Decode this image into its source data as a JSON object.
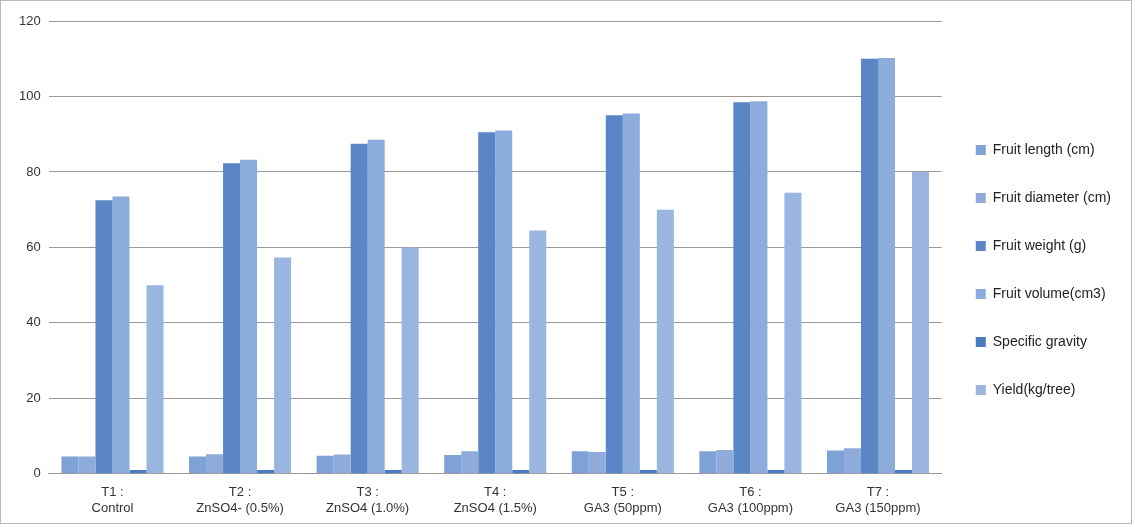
{
  "chart_data": {
    "type": "bar",
    "categories": [
      "T1 : Control",
      "T2 : ZnSO4- (0.5%)",
      "T3 : ZnSO4 (1.0%)",
      "T4 : ZnSO4 (1.5%)",
      "T5 : GA3 (50ppm)",
      "T6 : GA3 (100ppm)",
      "T7 : GA3 (150ppm)"
    ],
    "series": [
      {
        "name": "Fruit length (cm)",
        "color": "#7ea2d6",
        "values": [
          4.6,
          4.6,
          4.8,
          5.0,
          6.0,
          6.0,
          6.2
        ]
      },
      {
        "name": "Fruit diameter (cm)",
        "color": "#8eabd9",
        "values": [
          4.6,
          5.2,
          5.1,
          6.0,
          5.8,
          6.3,
          6.8
        ]
      },
      {
        "name": "Fruit weight (g)",
        "color": "#5b86c6",
        "values": [
          72.5,
          82.3,
          87.5,
          90.5,
          95,
          98.5,
          110
        ]
      },
      {
        "name": "Fruit volume(cm3)",
        "color": "#8cacdc",
        "values": [
          73.5,
          83.2,
          88.5,
          91,
          95.5,
          98.7,
          110.2
        ]
      },
      {
        "name": "Specific gravity",
        "color": "#4a7bc0",
        "values": [
          1,
          1,
          1,
          1,
          1,
          1,
          1
        ]
      },
      {
        "name": "Yield(kg/tree)",
        "color": "#9ab5df",
        "values": [
          50,
          57.3,
          60,
          64.5,
          70,
          74.5,
          80
        ]
      }
    ],
    "ylim": [
      0,
      120
    ],
    "yticks": [
      0,
      20,
      40,
      60,
      80,
      100,
      120
    ],
    "grid": "y",
    "legend": "right"
  }
}
